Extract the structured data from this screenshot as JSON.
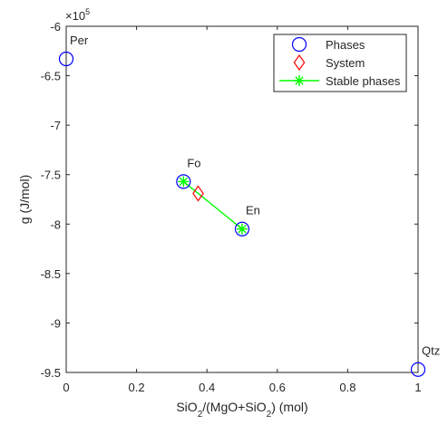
{
  "chart_data": {
    "type": "scatter",
    "title": "",
    "xlabel": "SiO₂/(MgO+SiO₂) (mol)",
    "ylabel": "g (J/mol)",
    "xlim": [
      0,
      1
    ],
    "ylim": [
      -9.5,
      -6
    ],
    "y_exponent_label": "×10^5",
    "x_ticks": [
      0,
      0.2,
      0.4,
      0.6,
      0.8,
      1
    ],
    "x_tick_labels": [
      "0",
      "0.2",
      "0.4",
      "0.6",
      "0.8",
      "1"
    ],
    "y_ticks": [
      -9.5,
      -9,
      -8.5,
      -8,
      -7.5,
      -7,
      -6.5,
      -6
    ],
    "y_tick_labels": [
      "-9.5",
      "-9",
      "-8.5",
      "-8",
      "-7.5",
      "-7",
      "-6.5",
      "-6"
    ],
    "legend_position": "top-right",
    "colors": {
      "phases": "#0000ff",
      "system": "#ff0000",
      "stable": "#00ff00",
      "axes": "#262626"
    },
    "series": [
      {
        "name": "Phases",
        "marker": "circle",
        "color": "#0000ff",
        "points": [
          {
            "x": 0,
            "y": -6.33,
            "label": "Per"
          },
          {
            "x": 0.3333,
            "y": -7.57,
            "label": "Fo"
          },
          {
            "x": 0.5,
            "y": -8.05,
            "label": "En"
          },
          {
            "x": 1,
            "y": -9.47,
            "label": "Qtz"
          }
        ]
      },
      {
        "name": "System",
        "marker": "diamond",
        "color": "#ff0000",
        "points": [
          {
            "x": 0.375,
            "y": -7.69
          }
        ]
      },
      {
        "name": "Stable phases",
        "marker": "asterisk",
        "line": true,
        "color": "#00ff00",
        "points": [
          {
            "x": 0.3333,
            "y": -7.57
          },
          {
            "x": 0.5,
            "y": -8.05
          }
        ]
      }
    ]
  }
}
